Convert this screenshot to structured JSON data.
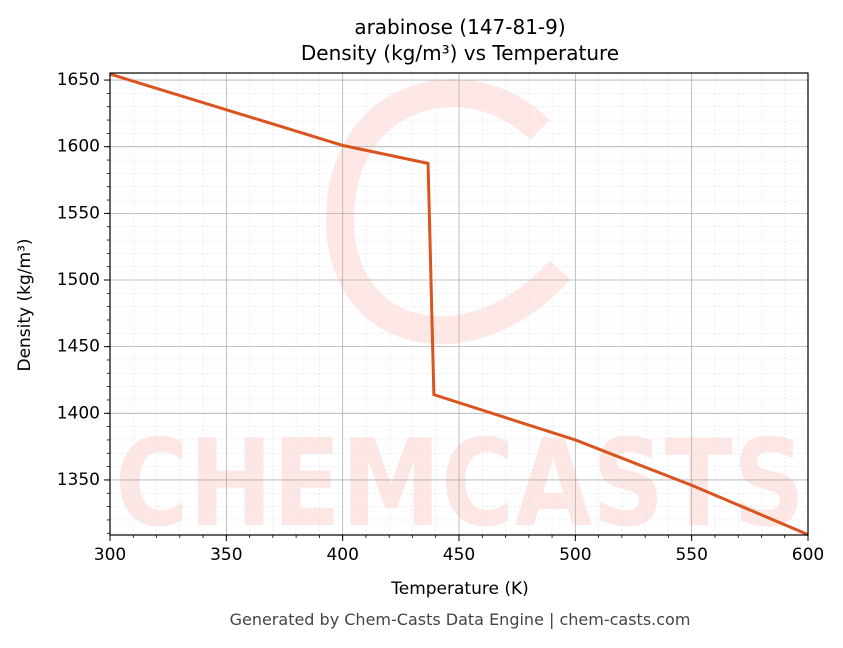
{
  "chart_data": {
    "type": "line",
    "title": "arabinose (147-81-9)",
    "subtitle": "Density (kg/m³) vs Temperature",
    "x_label": "Temperature (K)",
    "y_label": "Density (kg/m³)",
    "footer": "Generated by Chem-Casts Data Engine | chem-casts.com",
    "watermark": "CHEMCASTS",
    "x": [
      300,
      400,
      436.7,
      439.2,
      500,
      550,
      600
    ],
    "series": [
      {
        "name": "Density",
        "color": "#d9541e",
        "values": [
          1654.5,
          1601,
          1587.5,
          1414,
          1380,
          1346,
          1309
        ]
      }
    ],
    "xlim": [
      300,
      600
    ],
    "ylim": [
      1308.7,
      1655.3
    ],
    "xticks": [
      300,
      350,
      400,
      450,
      500,
      550,
      600
    ],
    "yticks": [
      1350,
      1400,
      1450,
      1500,
      1550,
      1600,
      1650
    ],
    "grid": true,
    "minor_grid": {
      "x": 10,
      "y": 10
    }
  }
}
